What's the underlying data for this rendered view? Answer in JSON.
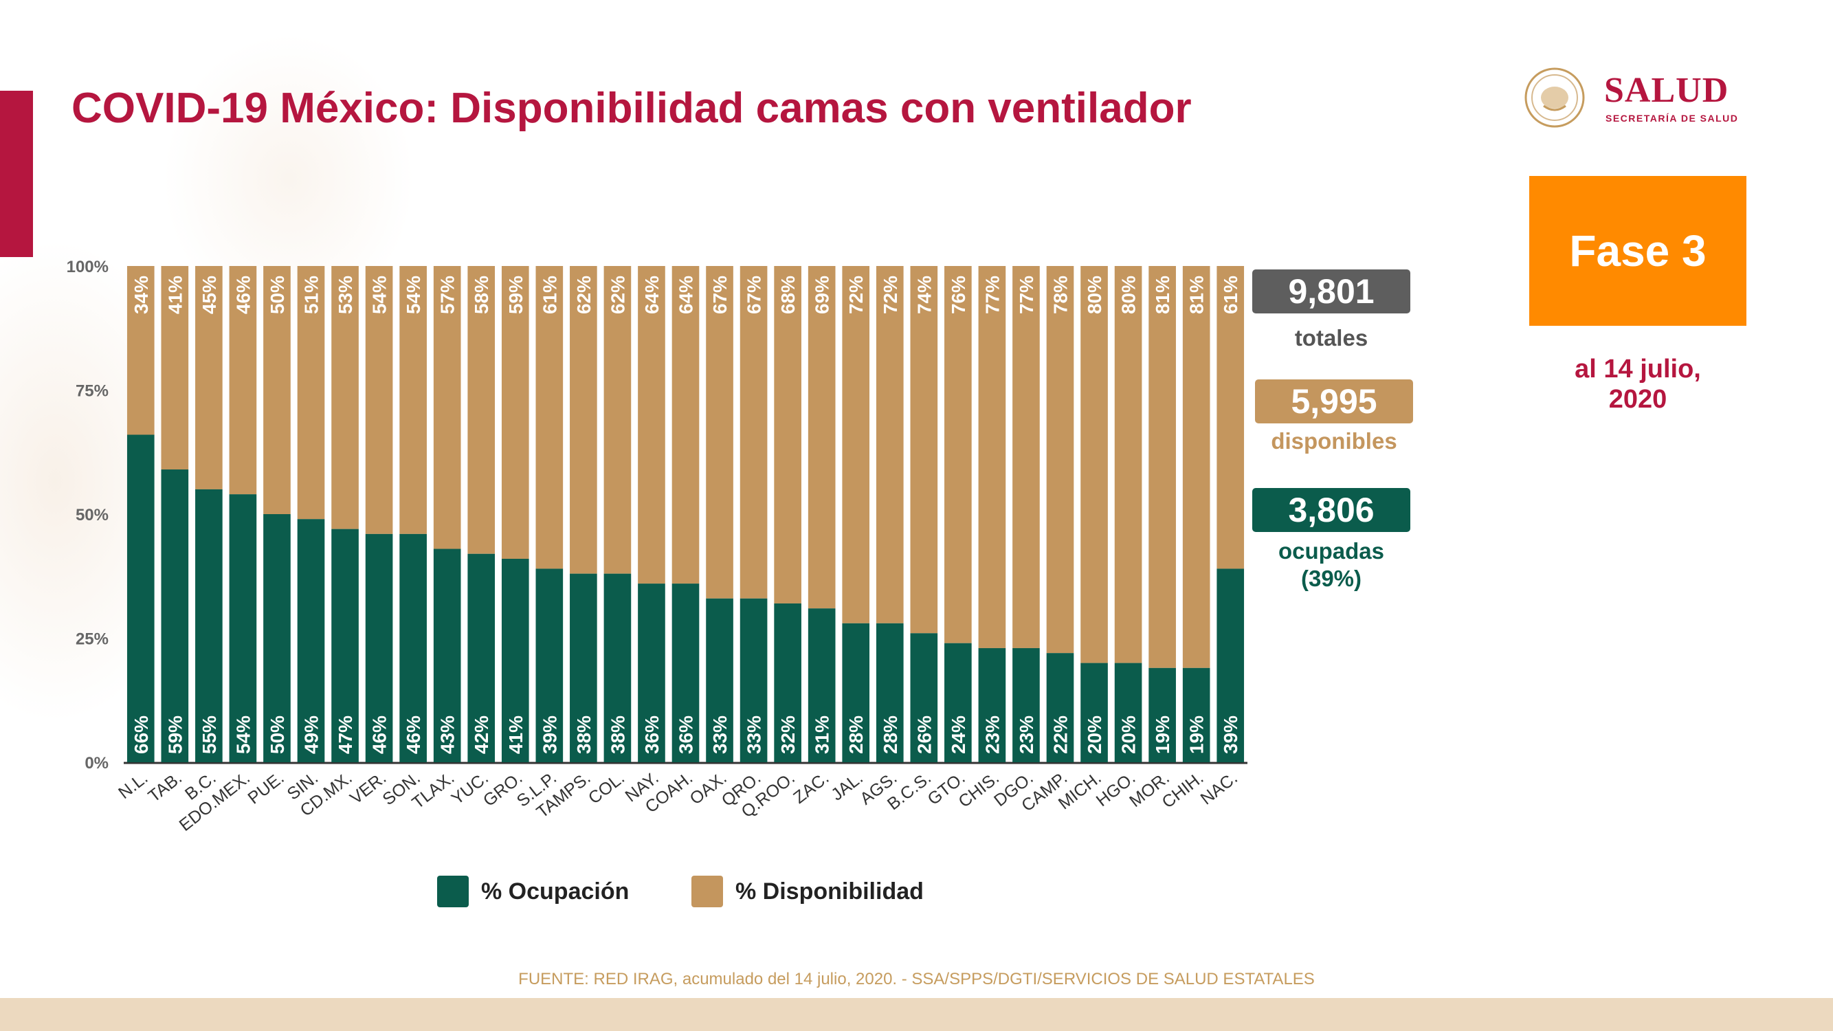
{
  "header": {
    "title": "COVID-19 México: Disponibilidad camas con ventilador",
    "logo_name": "SALUD",
    "logo_subtitle": "SECRETARÍA DE SALUD"
  },
  "phase": {
    "label": "Fase 3"
  },
  "date": {
    "line1": "al 14 julio,",
    "line2": "2020"
  },
  "stats": {
    "totales": {
      "value": "9,801",
      "label": "totales",
      "color": "#5e5e5e"
    },
    "disponibles": {
      "value": "5,995",
      "label": "disponibles",
      "color": "#c4965e"
    },
    "ocupadas": {
      "value": "3,806",
      "label_line1": "ocupadas",
      "label_line2": "(39%)",
      "color": "#0b5c4c"
    }
  },
  "legend": {
    "ocupacion": "% Ocupación",
    "disponibilidad": "% Disponibilidad"
  },
  "source": "FUENTE: RED IRAG, acumulado del 14 julio, 2020. -  SSA/SPPS/DGTI/SERVICIOS DE SALUD ESTATALES",
  "colors": {
    "brand": "#b5163f",
    "ocupacion": "#0b5c4c",
    "disponibilidad": "#c4965e",
    "phase": "#ff8a00"
  },
  "chart_data": {
    "type": "bar",
    "stacked": true,
    "categories": [
      "N.L.",
      "TAB.",
      "B.C.",
      "EDO.MEX.",
      "PUE.",
      "SIN.",
      "CD.MX.",
      "VER.",
      "SON.",
      "TLAX.",
      "YUC.",
      "GRO.",
      "S.L.P.",
      "TAMPS.",
      "COL.",
      "NAY.",
      "COAH.",
      "OAX.",
      "QRO.",
      "Q.ROO.",
      "ZAC.",
      "JAL.",
      "AGS.",
      "B.C.S.",
      "GTO.",
      "CHIS.",
      "DGO.",
      "CAMP.",
      "MICH.",
      "HGO.",
      "MOR.",
      "CHIH.",
      "NAC."
    ],
    "series": [
      {
        "name": "% Ocupación",
        "color": "#0b5c4c",
        "values": [
          66,
          59,
          55,
          54,
          50,
          49,
          47,
          46,
          46,
          43,
          42,
          41,
          39,
          38,
          38,
          36,
          36,
          33,
          33,
          32,
          31,
          28,
          28,
          26,
          24,
          23,
          23,
          22,
          20,
          20,
          19,
          19,
          39
        ],
        "labels": [
          "66%",
          "59%",
          "55%",
          "54%",
          "50%",
          "49%",
          "47%",
          "46%",
          "46%",
          "43%",
          "42%",
          "41%",
          "39%",
          "38%",
          "38%",
          "36%",
          "36%",
          "33%",
          "33%",
          "32%",
          "31%",
          "28%",
          "28%",
          "26%",
          "24%",
          "23%",
          "23%",
          "22%",
          "20%",
          "20%",
          "19%",
          "19%",
          "39%"
        ]
      },
      {
        "name": "% Disponibilidad",
        "color": "#c4965e",
        "values": [
          34,
          41,
          45,
          46,
          50,
          51,
          53,
          54,
          54,
          57,
          58,
          59,
          61,
          62,
          62,
          64,
          64,
          67,
          67,
          68,
          69,
          72,
          72,
          74,
          76,
          77,
          77,
          78,
          80,
          80,
          81,
          81,
          61
        ],
        "labels": [
          "34%",
          "41%",
          "45%",
          "46%",
          "50%",
          "51%",
          "53%",
          "54%",
          "54%",
          "57%",
          "58%",
          "59%",
          "61%",
          "62%",
          "62%",
          "64%",
          "64%",
          "67%",
          "67%",
          "68%",
          "69%",
          "72%",
          "72%",
          "74%",
          "76%",
          "77%",
          "77%",
          "78%",
          "80%",
          "80%",
          "81%",
          "81%",
          "61%"
        ]
      }
    ],
    "yticks": [
      "0%",
      "25%",
      "50%",
      "75%",
      "100%"
    ],
    "ylim": [
      0,
      100
    ],
    "grid": false,
    "legend": "bottom"
  }
}
